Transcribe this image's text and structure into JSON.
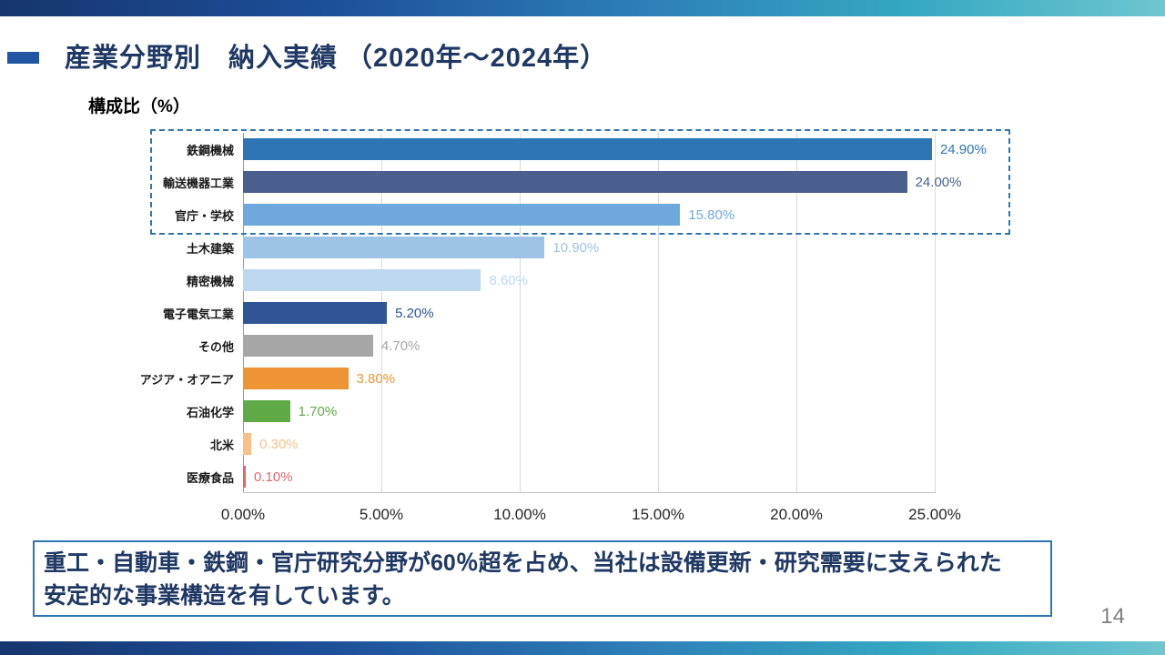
{
  "slide": {
    "title": "産業分野別　納入実績 （2020年～2024年）",
    "page_number": "14",
    "accent": {
      "title_color": "#1f3864",
      "marker_color": "#2155a0",
      "bar_gradient": [
        "#16366e",
        "#1d4f9a",
        "#2d7fb8",
        "#35a8c2",
        "#6ec6d0"
      ]
    }
  },
  "chart_data": {
    "type": "bar",
    "orientation": "horizontal",
    "axis_title": "構成比（%）",
    "categories": [
      "鉄鋼機械",
      "輸送機器工業",
      "官庁・学校",
      "土木建築",
      "精密機械",
      "電子電気工業",
      "その他",
      "アジア・オアニア",
      "石油化学",
      "北米",
      "医療食品"
    ],
    "values": [
      24.9,
      24.0,
      15.8,
      10.9,
      8.6,
      5.2,
      4.7,
      3.8,
      1.7,
      0.3,
      0.1
    ],
    "value_labels": [
      "24.90%",
      "24.00%",
      "15.80%",
      "10.90%",
      "8.60%",
      "5.20%",
      "4.70%",
      "3.80%",
      "1.70%",
      "0.30%",
      "0.10%"
    ],
    "bar_colors": [
      "#2e75b6",
      "#4a5f8e",
      "#6fa8dc",
      "#9dc3e6",
      "#bdd7ee",
      "#2f5597",
      "#a6a6a6",
      "#ed9434",
      "#5faa46",
      "#f9c189",
      "#e0666a"
    ],
    "xlim": [
      0,
      25
    ],
    "x_ticks": [
      "0.00%",
      "5.00%",
      "10.00%",
      "15.00%",
      "20.00%",
      "25.00%"
    ],
    "grid": true,
    "legend": false,
    "highlight": {
      "rows": 3,
      "style": "dashed",
      "color": "#2e75b6"
    }
  },
  "footer": {
    "summary_line1": "重工・自動車・鉄鋼・官庁研究分野が60％超を占め、当社は設備更新・研究需要に支えられた",
    "summary_line2": "安定的な事業構造を有しています。"
  }
}
